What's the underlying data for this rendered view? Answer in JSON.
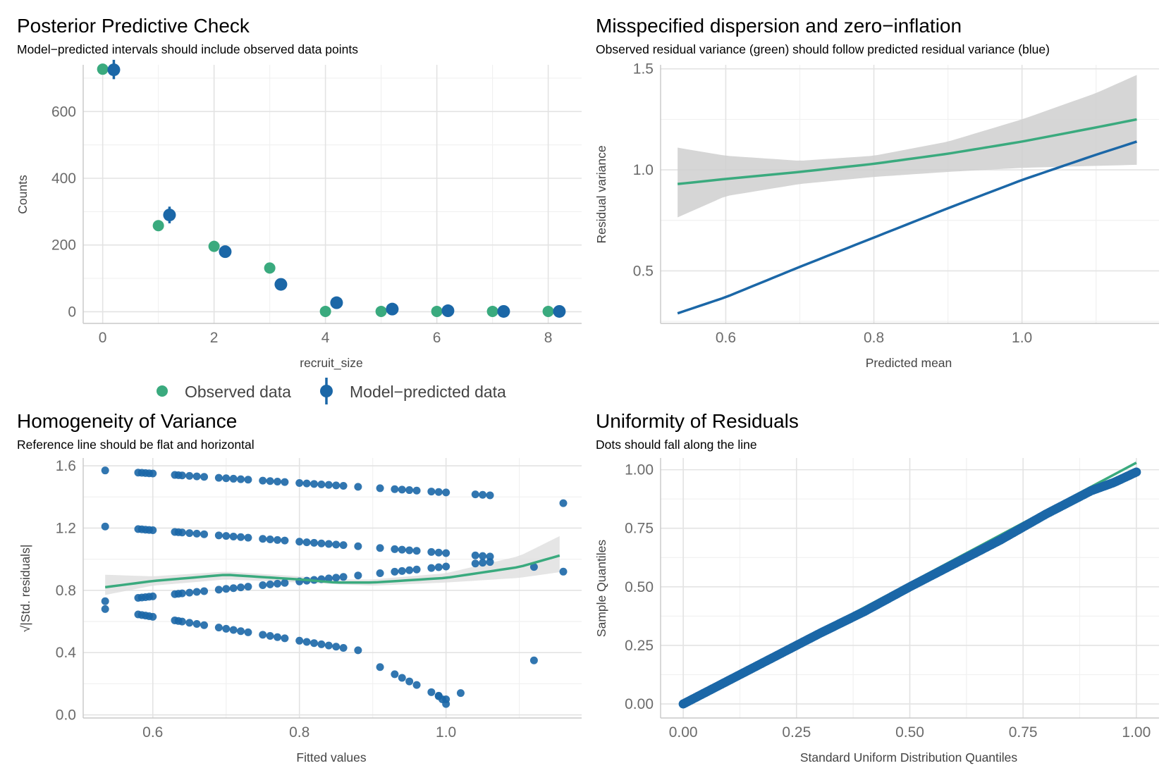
{
  "colors": {
    "observed": "#3aaa7e",
    "predicted": "#1b67a7",
    "band": "#cfcfcf"
  },
  "chart_data": [
    {
      "type": "scatter",
      "title": "Posterior Predictive Check",
      "subtitle": "Model−predicted intervals should include observed data points",
      "xlabel": "recruit_size",
      "ylabel": "Counts",
      "xlim": [
        -0.35,
        8.6
      ],
      "ylim": [
        -35,
        740
      ],
      "xticks": [
        0,
        2,
        4,
        6,
        8
      ],
      "xtick_labels": [
        "0",
        "2",
        "4",
        "6",
        "8"
      ],
      "yticks": [
        0,
        200,
        400,
        600
      ],
      "ytick_labels": [
        "0",
        "200",
        "400",
        "600"
      ],
      "legend": {
        "position": "bottom",
        "observed_label": "Observed data",
        "predicted_label": "Model−predicted data"
      },
      "observed": {
        "x": [
          0,
          1,
          2,
          3,
          4,
          5,
          6,
          7,
          8
        ],
        "y": [
          727,
          258,
          196,
          131,
          1,
          1,
          1,
          1,
          1
        ]
      },
      "predicted": {
        "x": [
          0,
          1,
          2,
          3,
          4,
          5,
          6,
          7,
          8
        ],
        "y": [
          725,
          290,
          180,
          82,
          27,
          8,
          3,
          1,
          1
        ],
        "low": [
          697,
          265,
          167,
          75,
          23,
          6,
          2,
          0,
          0
        ],
        "high": [
          755,
          315,
          195,
          92,
          33,
          12,
          6,
          3,
          2
        ]
      }
    },
    {
      "type": "line",
      "title": "Misspecified dispersion and zero−inflation",
      "subtitle": "Observed residual variance (green) should follow predicted residual variance (blue)",
      "xlabel": "Predicted mean",
      "ylabel": "Residual variance",
      "xlim": [
        0.512,
        1.185
      ],
      "ylim": [
        0.24,
        1.52
      ],
      "xticks": [
        0.6,
        0.8,
        1.0
      ],
      "xtick_labels": [
        "0.6",
        "0.8",
        "1.0"
      ],
      "yticks": [
        0.5,
        1.0,
        1.5
      ],
      "ytick_labels": [
        "0.5",
        "1.0",
        "1.5"
      ],
      "series": [
        {
          "name": "observed",
          "x": [
            0.535,
            0.6,
            0.7,
            0.8,
            0.9,
            1.0,
            1.1,
            1.155
          ],
          "y": [
            0.93,
            0.955,
            0.99,
            1.03,
            1.08,
            1.14,
            1.21,
            1.25
          ],
          "ci_low": [
            0.765,
            0.87,
            0.93,
            0.965,
            0.99,
            1.01,
            1.02,
            1.025
          ],
          "ci_high": [
            1.11,
            1.07,
            1.045,
            1.07,
            1.14,
            1.25,
            1.38,
            1.47
          ]
        },
        {
          "name": "predicted",
          "x": [
            0.535,
            0.6,
            0.7,
            0.8,
            0.9,
            1.0,
            1.1,
            1.155
          ],
          "y": [
            0.29,
            0.37,
            0.52,
            0.665,
            0.81,
            0.95,
            1.075,
            1.14
          ]
        }
      ]
    },
    {
      "type": "scatter",
      "title": "Homogeneity of Variance",
      "subtitle": "Reference line should be flat and horizontal",
      "xlabel": "Fitted values",
      "ylabel": "√|Std. residuals|",
      "xlim": [
        0.505,
        1.185
      ],
      "ylim": [
        -0.02,
        1.65
      ],
      "xticks": [
        0.6,
        0.8,
        1.0
      ],
      "xtick_labels": [
        "0.6",
        "0.8",
        "1.0"
      ],
      "yticks": [
        0.0,
        0.4,
        0.8,
        1.2,
        1.6
      ],
      "ytick_labels": [
        "0.0",
        "0.4",
        "0.8",
        "1.2",
        "1.6"
      ],
      "bands": [
        {
          "y_at_min": 1.57,
          "y_at_max": 1.38
        },
        {
          "y_at_min": 1.21,
          "y_at_max": 0.98
        },
        {
          "y_at_min": 0.73,
          "y_at_max": 1.03
        },
        {
          "y_at_min": 0.68,
          "y_at_max": 0.2
        }
      ],
      "points_x": [
        0.535,
        0.58,
        0.585,
        0.59,
        0.595,
        0.6,
        0.63,
        0.635,
        0.64,
        0.65,
        0.66,
        0.67,
        0.69,
        0.7,
        0.71,
        0.72,
        0.73,
        0.75,
        0.76,
        0.77,
        0.78,
        0.8,
        0.81,
        0.82,
        0.83,
        0.84,
        0.85,
        0.86,
        0.88,
        0.91,
        0.93,
        0.94,
        0.95,
        0.96,
        0.98,
        0.99,
        1.0,
        1.04,
        1.05,
        1.06,
        1.12
      ],
      "smooth": {
        "x": [
          0.535,
          0.6,
          0.7,
          0.8,
          0.85,
          0.9,
          1.0,
          1.1,
          1.16
        ],
        "y": [
          0.82,
          0.86,
          0.9,
          0.87,
          0.85,
          0.85,
          0.88,
          0.95,
          1.03
        ],
        "ci_low": [
          0.77,
          0.83,
          0.87,
          0.85,
          0.84,
          0.83,
          0.85,
          0.88,
          0.92
        ],
        "ci_high": [
          0.9,
          0.89,
          0.92,
          0.89,
          0.87,
          0.87,
          0.91,
          1.02,
          1.16
        ]
      },
      "extra_points": [
        {
          "x": 0.99,
          "y": 0.12
        },
        {
          "x": 0.995,
          "y": 0.1
        },
        {
          "x": 1.0,
          "y": 0.07
        },
        {
          "x": 1.02,
          "y": 0.14
        },
        {
          "x": 1.12,
          "y": 0.35
        },
        {
          "x": 1.16,
          "y": 0.92
        },
        {
          "x": 1.16,
          "y": 1.36
        },
        {
          "x": 1.12,
          "y": 0.95
        }
      ]
    },
    {
      "type": "scatter",
      "title": "Uniformity of Residuals",
      "subtitle": "Dots should fall along the line",
      "xlabel": "Standard Uniform Distribution Quantiles",
      "ylabel": "Sample Quantiles",
      "xlim": [
        -0.05,
        1.05
      ],
      "ylim": [
        -0.06,
        1.05
      ],
      "xticks": [
        0.0,
        0.25,
        0.5,
        0.75,
        1.0
      ],
      "xtick_labels": [
        "0.00",
        "0.25",
        "0.50",
        "0.75",
        "1.00"
      ],
      "yticks": [
        0.0,
        0.25,
        0.5,
        0.75,
        1.0
      ],
      "ytick_labels": [
        "0.00",
        "0.25",
        "0.50",
        "0.75",
        "1.00"
      ],
      "reference_line": {
        "x": [
          0.0,
          1.0
        ],
        "y": [
          0.0,
          1.03
        ]
      },
      "qq_points": {
        "x": [
          0.0,
          0.1,
          0.2,
          0.3,
          0.4,
          0.5,
          0.6,
          0.7,
          0.8,
          0.9,
          0.95,
          1.0
        ],
        "y": [
          0.0,
          0.1,
          0.2,
          0.3,
          0.395,
          0.5,
          0.6,
          0.7,
          0.81,
          0.91,
          0.945,
          0.99
        ]
      }
    }
  ]
}
